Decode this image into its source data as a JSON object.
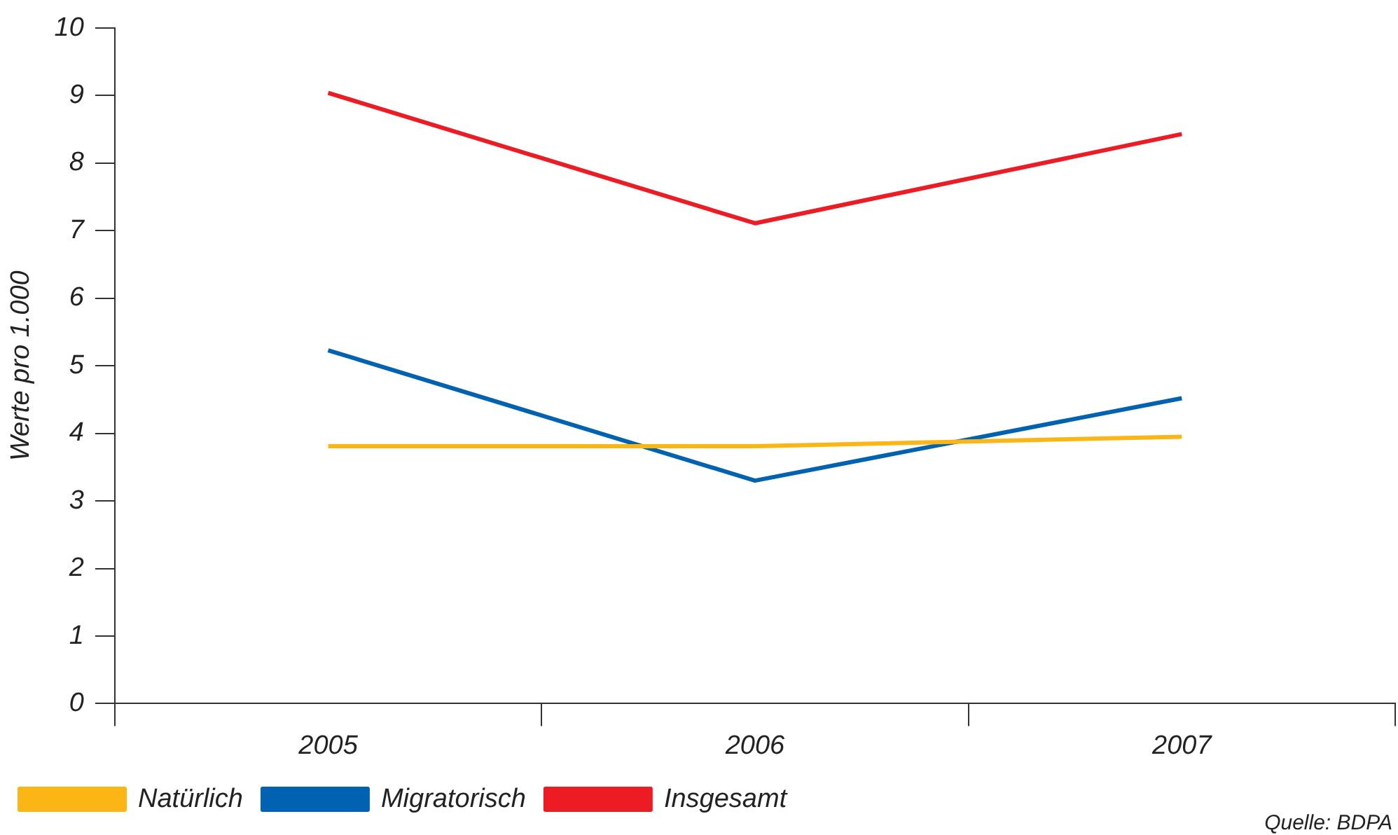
{
  "chart_data": {
    "type": "line",
    "ylabel": "Werte pro 1.000",
    "categories": [
      "2005",
      "2006",
      "2007"
    ],
    "series": [
      {
        "name": "Natürlich",
        "color": "#fbb616",
        "values": [
          3.81,
          3.81,
          3.95
        ]
      },
      {
        "name": "Migratorisch",
        "color": "#0062b0",
        "values": [
          5.23,
          3.3,
          4.52
        ]
      },
      {
        "name": "Insgesamt",
        "color": "#ed1c24",
        "values": [
          9.04,
          7.11,
          8.43
        ]
      }
    ],
    "ylim": [
      0,
      10
    ],
    "yticks": [
      0,
      1,
      2,
      3,
      4,
      5,
      6,
      7,
      8,
      9,
      10
    ],
    "grid": false,
    "legend": "bottom left",
    "marker": "none",
    "line_style": "solid",
    "annotations": [
      "Quelle: BDPA"
    ]
  }
}
